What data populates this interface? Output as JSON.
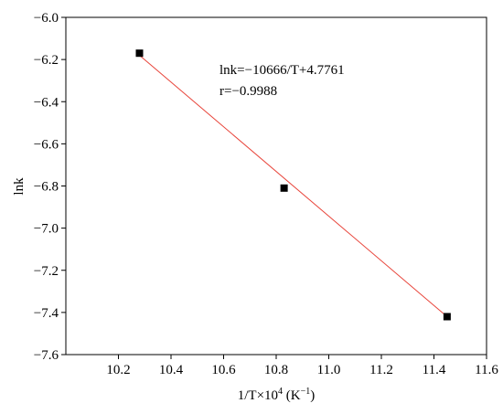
{
  "chart_data": {
    "type": "scatter",
    "xlabel": "1/T×10",
    "xlabel_exponent": "4",
    "xlabel_unit_open": " (K",
    "xlabel_unit_exponent": "−1",
    "xlabel_unit_close": ")",
    "ylabel": "lnk",
    "xlim": [
      10.0,
      11.6
    ],
    "ylim": [
      -7.6,
      -6.0
    ],
    "xticks": [
      "10.2",
      "10.4",
      "10.6",
      "10.8",
      "11.0",
      "11.2",
      "11.4",
      "11.6"
    ],
    "yticks": [
      "−6.0",
      "−6.2",
      "−6.4",
      "−6.6",
      "−6.8",
      "−7.0",
      "−7.2",
      "−7.4",
      "−7.6"
    ],
    "points": [
      {
        "x": 10.28,
        "y": -6.17
      },
      {
        "x": 10.83,
        "y": -6.81
      },
      {
        "x": 11.45,
        "y": -7.42
      }
    ],
    "fit_line": {
      "x": [
        10.28,
        11.45
      ],
      "y": [
        -6.18,
        -7.42
      ],
      "color": "#e8443a"
    },
    "marker_color": "#000000",
    "grid": false,
    "annotations": [
      "lnk=−10666/T+4.7761",
      "r=−0.9988"
    ]
  }
}
